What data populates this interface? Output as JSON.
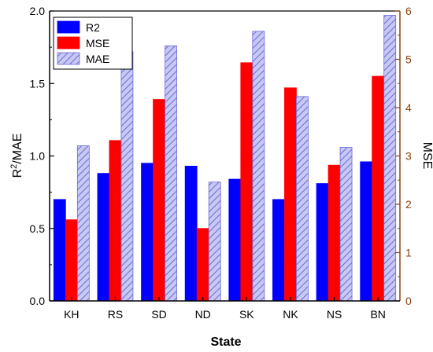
{
  "chart_data": {
    "type": "bar",
    "categories": [
      "KH",
      "RS",
      "SD",
      "ND",
      "SK",
      "NK",
      "NS",
      "BN"
    ],
    "series": [
      {
        "name": "R2",
        "axis": "left",
        "color": "#0000ff",
        "values": [
          0.7,
          0.88,
          0.95,
          0.93,
          0.84,
          0.7,
          0.81,
          0.96
        ]
      },
      {
        "name": "MSE",
        "axis": "right",
        "color": "#ff0000",
        "values": [
          1.68,
          3.32,
          4.17,
          1.5,
          4.93,
          4.41,
          2.81,
          4.65
        ]
      },
      {
        "name": "MAE",
        "axis": "left",
        "color": "#9999ee",
        "pattern": "hatched",
        "values": [
          1.07,
          1.72,
          1.76,
          0.82,
          1.86,
          1.41,
          1.06,
          1.97
        ]
      }
    ],
    "xlabel": "State",
    "ylabel_left_base": "R",
    "ylabel_left_sup": "2",
    "ylabel_left_rest": "/MAE",
    "ylabel_right": "MSE",
    "ylim_left": [
      0.0,
      2.0
    ],
    "ylim_right": [
      0,
      6
    ],
    "left_ticks": [
      "0.0",
      "0.5",
      "1.0",
      "1.5",
      "2.0"
    ],
    "right_ticks": [
      "0",
      "1",
      "2",
      "3",
      "4",
      "5",
      "6"
    ],
    "right_axis_color": "#8b4513",
    "legend_position": "top-left",
    "grid": false
  }
}
